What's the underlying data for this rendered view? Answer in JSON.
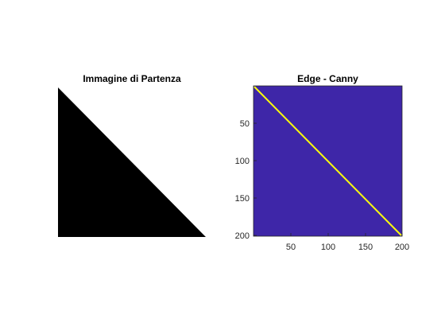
{
  "window": {
    "background": "#ffffff"
  },
  "left_panel": {
    "title": "Immagine di Partenza",
    "image_kind": "binary-triangle",
    "foreground_color": "#000000",
    "background_color": "#ffffff"
  },
  "right_panel": {
    "title": "Edge - Canny",
    "colormap_background": "#3e26a8",
    "edge_color": "#f9fb0e",
    "x_ticks": [
      "50",
      "100",
      "150",
      "200"
    ],
    "y_ticks": [
      "50",
      "100",
      "150",
      "200"
    ],
    "axis_color": "#262626"
  }
}
